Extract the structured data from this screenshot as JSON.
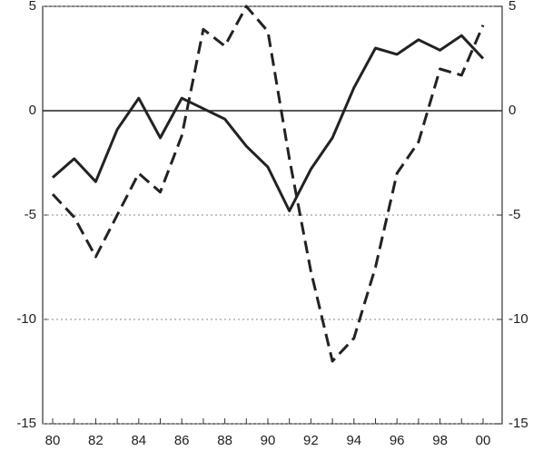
{
  "chart_data": {
    "type": "line",
    "categories": [
      "80",
      null,
      "82",
      null,
      "84",
      null,
      "86",
      null,
      "88",
      null,
      "90",
      null,
      "92",
      null,
      "94",
      null,
      "96",
      null,
      "98",
      null,
      "00"
    ],
    "series": [
      {
        "color": "#222222",
        "linestyle": "solid",
        "values": [
          -3.2,
          -2.3,
          -3.4,
          -0.9,
          0.6,
          -1.3,
          0.6,
          0.1,
          -0.4,
          -1.7,
          -2.7,
          -4.8,
          -2.8,
          -1.3,
          1.1,
          3.0,
          2.7,
          3.4,
          2.9,
          3.6,
          2.5
        ]
      },
      {
        "color": "#222222",
        "linestyle": "dashed",
        "values": [
          -4.0,
          -5.1,
          -7.0,
          -5.0,
          -3.0,
          -3.9,
          -1.2,
          3.9,
          3.1,
          5.0,
          3.8,
          -2.3,
          -7.7,
          -12.0,
          -10.9,
          -7.5,
          -3.0,
          -1.5,
          2.0,
          1.7,
          4.1
        ]
      }
    ],
    "ylim": [
      -15,
      5
    ],
    "yticks": [
      -15,
      -10,
      -5,
      0,
      5
    ],
    "y2lim": [
      -15,
      5
    ],
    "y2ticks": [
      -15,
      -10,
      -5,
      0,
      5
    ],
    "grid": true
  }
}
